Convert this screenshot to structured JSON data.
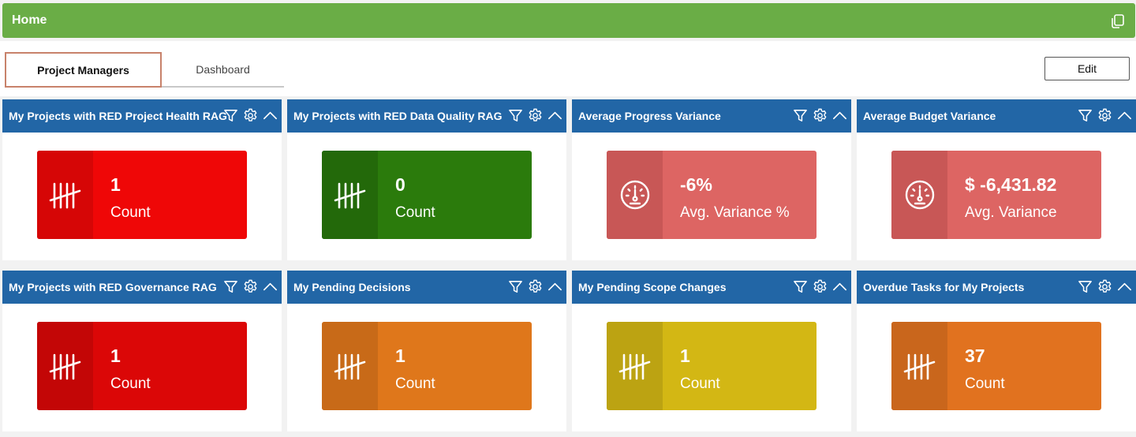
{
  "header": {
    "title": "Home",
    "icon": "copy-icon",
    "color": "#6aad46"
  },
  "tabs": [
    {
      "label": "Project Managers",
      "active": true
    },
    {
      "label": "Dashboard",
      "active": false
    }
  ],
  "edit_label": "Edit",
  "cards": [
    {
      "title": "My Projects with RED Project Health RAG",
      "value": "1",
      "label": "Count",
      "icon": "tally-icon",
      "main_color": "#ef0707",
      "icon_bg": "#d60606"
    },
    {
      "title": "My Projects with RED Data Quality RAG",
      "value": "0",
      "label": "Count",
      "icon": "tally-icon",
      "main_color": "#2b7b0c",
      "icon_bg": "#23690a"
    },
    {
      "title": "Average Progress Variance",
      "value": "-6%",
      "label": "Avg. Variance %",
      "icon": "gauge-icon",
      "main_color": "#dd6563",
      "icon_bg": "#c85756"
    },
    {
      "title": "Average Budget Variance",
      "value": "$ -6,431.82",
      "label": "Avg. Variance",
      "icon": "gauge-icon",
      "main_color": "#dd6563",
      "icon_bg": "#c85756"
    },
    {
      "title": "My Projects with RED Governance RAG",
      "value": "1",
      "label": "Count",
      "icon": "tally-icon",
      "main_color": "#db0707",
      "icon_bg": "#c30606"
    },
    {
      "title": "My Pending Decisions",
      "value": "1",
      "label": "Count",
      "icon": "tally-icon",
      "main_color": "#df771b",
      "icon_bg": "#c86a18"
    },
    {
      "title": "My Pending Scope Changes",
      "value": "1",
      "label": "Count",
      "icon": "tally-icon",
      "main_color": "#d3b714",
      "icon_bg": "#bca312"
    },
    {
      "title": "Overdue Tasks for My Projects",
      "value": "37",
      "label": "Count",
      "icon": "tally-icon",
      "main_color": "#e1721f",
      "icon_bg": "#c9661c"
    }
  ],
  "card_header_color": "#2266a6",
  "card_header_icons": [
    "filter-icon",
    "gear-icon",
    "chevron-up-icon"
  ]
}
